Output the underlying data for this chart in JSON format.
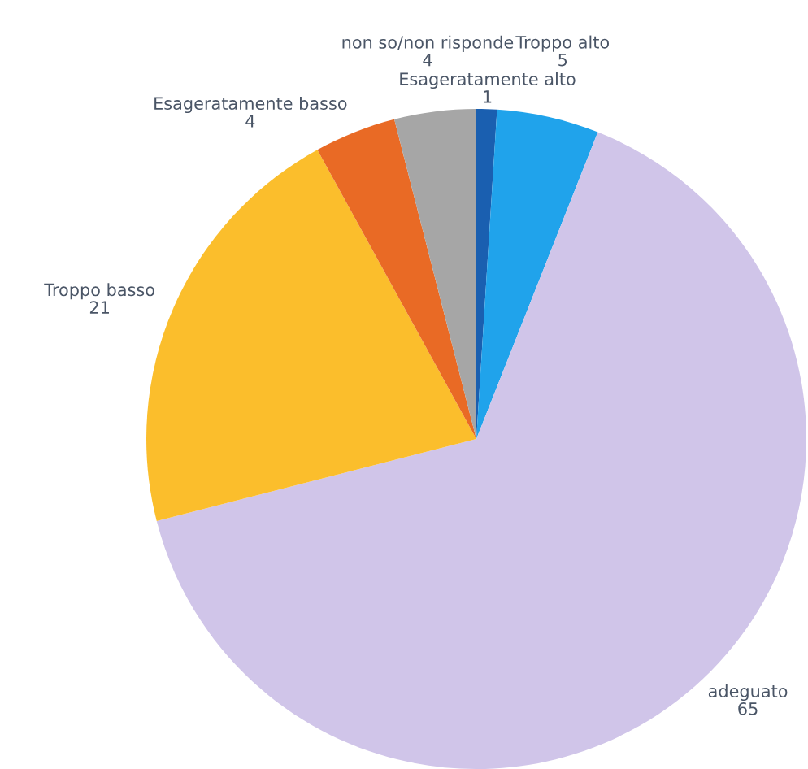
{
  "chart_data": {
    "type": "pie",
    "categories": [
      "Esageratamente alto",
      "Troppo alto",
      "adeguato",
      "Troppo basso",
      "Esageratamente basso",
      "non so/non risponde"
    ],
    "values": [
      1,
      5,
      65,
      21,
      4,
      4
    ],
    "colors": [
      "#1a5fb0",
      "#20a3eb",
      "#d0c5e9",
      "#fbbe2c",
      "#e96a25",
      "#a6a6a6"
    ],
    "data_labels": true,
    "legend": false
  }
}
